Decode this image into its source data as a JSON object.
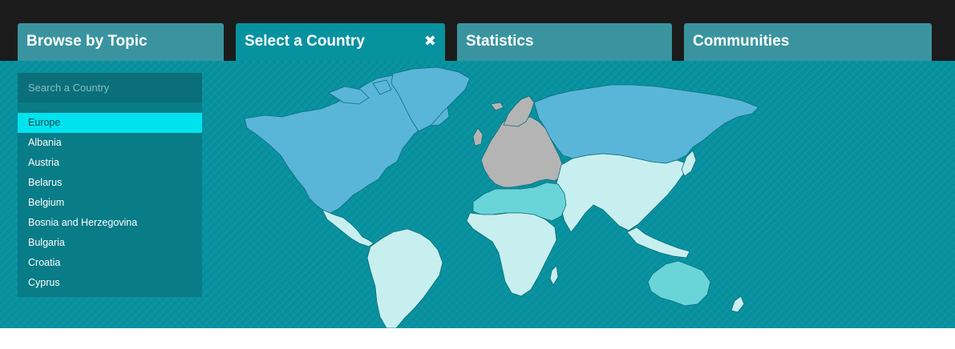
{
  "tabs": [
    {
      "label": "Browse by Topic"
    },
    {
      "label": "Select a Country",
      "active": true,
      "close_icon": "close-icon"
    },
    {
      "label": "Statistics"
    },
    {
      "label": "Communities"
    }
  ],
  "sidebar": {
    "search_placeholder": "Search a Country",
    "countries": [
      {
        "label": "Europe",
        "selected": true
      },
      {
        "label": "Albania"
      },
      {
        "label": "Austria"
      },
      {
        "label": "Belarus"
      },
      {
        "label": "Belgium"
      },
      {
        "label": "Bosnia and Herzegovina"
      },
      {
        "label": "Bulgaria"
      },
      {
        "label": "Croatia"
      },
      {
        "label": "Cyprus"
      }
    ]
  },
  "map": {
    "colors": {
      "north_america_russia": "#5ab6d8",
      "asia_africa_south_america": "#c8efef",
      "middle_east_north_africa_oceania": "#6ad5d9",
      "europe_highlighted": "#b4b4b4",
      "ocean": "#07919f"
    }
  }
}
